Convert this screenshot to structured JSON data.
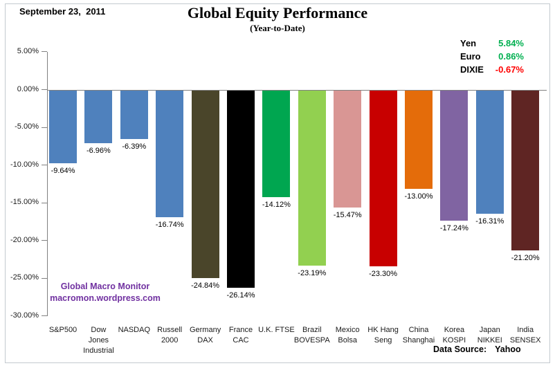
{
  "header": {
    "date": "September 23,  2011",
    "title": "Global Equity Performance",
    "subtitle": "(Year-to-Date)"
  },
  "fx_legend": {
    "items": [
      {
        "label": "Yen",
        "value": "5.84%",
        "color": "#00B050"
      },
      {
        "label": "Euro",
        "value": "0.86%",
        "color": "#00B050"
      },
      {
        "label": "DIXIE",
        "value": "-0.67%",
        "color": "#FF0000"
      }
    ]
  },
  "chart_data": {
    "type": "bar",
    "title": "Global Equity Performance",
    "subtitle": "(Year-to-Date)",
    "date": "September 23, 2011",
    "categories": [
      "S&P500",
      "Dow Jones Industrial",
      "NASDAQ",
      "Russell 2000",
      "Germany DAX",
      "France CAC",
      "U.K. FTSE",
      "Brazil BOVESPA",
      "Mexico Bolsa",
      "HK Hang Seng",
      "China Shanghai",
      "Korea KOSPI",
      "Japan NIKKEI",
      "India SENSEX"
    ],
    "category_lines": [
      [
        "S&P500"
      ],
      [
        "Dow",
        "Jones",
        "Industrial"
      ],
      [
        "NASDAQ"
      ],
      [
        "Russell",
        "2000"
      ],
      [
        "Germany",
        "DAX"
      ],
      [
        "France",
        "CAC"
      ],
      [
        "U.K. FTSE"
      ],
      [
        "Brazil",
        "BOVESPA"
      ],
      [
        "Mexico",
        "Bolsa"
      ],
      [
        "HK Hang",
        "Seng"
      ],
      [
        "China",
        "Shanghai"
      ],
      [
        "Korea",
        "KOSPI"
      ],
      [
        "Japan",
        "NIKKEI"
      ],
      [
        "India",
        "SENSEX"
      ]
    ],
    "values": [
      -9.64,
      -6.96,
      -6.39,
      -16.74,
      -24.84,
      -26.14,
      -14.12,
      -23.19,
      -15.47,
      -23.3,
      -13.0,
      -17.24,
      -16.31,
      -21.2
    ],
    "value_labels": [
      "-9.64%",
      "-6.96%",
      "-6.39%",
      "-16.74%",
      "-24.84%",
      "-26.14%",
      "-14.12%",
      "-23.19%",
      "-15.47%",
      "-23.30%",
      "-13.00%",
      "-17.24%",
      "-16.31%",
      "-21.20%"
    ],
    "bar_colors": [
      "#4F81BD",
      "#4F81BD",
      "#4F81BD",
      "#4F81BD",
      "#4A452A",
      "#000000",
      "#00A650",
      "#92D050",
      "#D99694",
      "#C80000",
      "#E46C0A",
      "#8064A2",
      "#4F81BD",
      "#5F2523"
    ],
    "ylabel": "",
    "xlabel": "",
    "ylim": [
      -30,
      5
    ],
    "ytick_values": [
      5,
      0,
      -5,
      -10,
      -15,
      -20,
      -25,
      -30
    ],
    "ytick_labels": [
      "5.00%",
      "0.00%",
      "-5.00%",
      "-10.00%",
      "-15.00%",
      "-20.00%",
      "-25.00%",
      "-30.00%"
    ],
    "grid": "zero-line-only",
    "axis_color": "#808080",
    "legend_position": "top-right"
  },
  "branding": {
    "line1": "Global Macro Monitor",
    "line2": "macromon.wordpress.com",
    "color": "#7030A0"
  },
  "footer": {
    "source_label": "Data Source:",
    "source_value": "Yahoo"
  }
}
